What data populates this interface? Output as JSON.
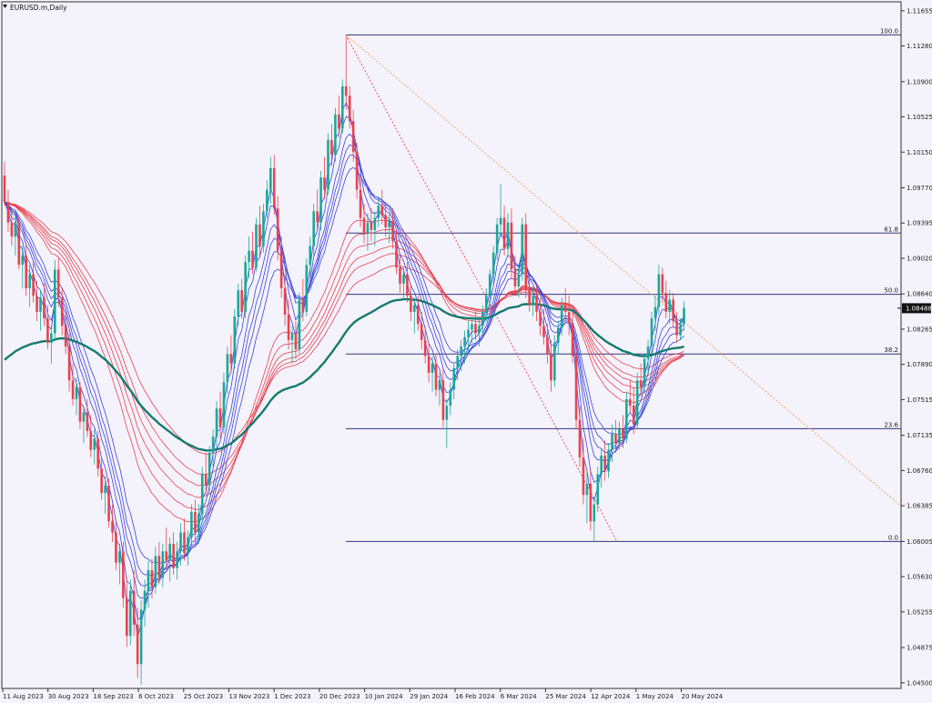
{
  "chart_data": {
    "type": "candlestick",
    "title": "EURUSD.m,Daily",
    "y_ticks": [
      "1.11655",
      "1.11280",
      "1.10900",
      "1.10525",
      "1.10150",
      "1.09770",
      "1.09395",
      "1.09020",
      "1.08640",
      "1.08265",
      "1.07890",
      "1.07515",
      "1.07135",
      "1.06760",
      "1.06385",
      "1.06005",
      "1.05630",
      "1.05255",
      "1.04875",
      "1.04500"
    ],
    "y_tick_values": [
      1.11655,
      1.1128,
      1.109,
      1.10525,
      1.1015,
      1.0977,
      1.09395,
      1.0902,
      1.0864,
      1.08265,
      1.0789,
      1.07515,
      1.07135,
      1.0676,
      1.06385,
      1.06005,
      1.0563,
      1.05255,
      1.04875,
      1.045
    ],
    "ylim": [
      1.0444,
      1.1175
    ],
    "current_price": {
      "label": "1.08488",
      "value": 1.08488
    },
    "x_ticks": [
      "11 Aug 2023",
      "30 Aug 2023",
      "18 Sep 2023",
      "6 Oct 2023",
      "25 Oct 2023",
      "13 Nov 2023",
      "1 Dec 2023",
      "20 Dec 2023",
      "10 Jan 2024",
      "29 Jan 2024",
      "16 Feb 2024",
      "6 Mar 2024",
      "25 Mar 2024",
      "12 Apr 2024",
      "1 May 2024",
      "20 May 2024"
    ],
    "fibonacci": [
      {
        "label": "100.0",
        "value": 1.11398
      },
      {
        "label": "61.8",
        "value": 1.09288
      },
      {
        "label": "50.0",
        "value": 1.08636
      },
      {
        "label": "38.2",
        "value": 1.08001
      },
      {
        "label": "23.6",
        "value": 1.07205
      },
      {
        "label": "0.0",
        "value": 1.06005
      }
    ],
    "series_colors": {
      "bull": "#1aa89a",
      "bear": "#e8434f",
      "fast_ma": "#3b45d8",
      "slow_ma": "#e8434f",
      "long_ma": "#157a6e",
      "fib": "#32367a",
      "trend_orange": "#f0a050",
      "trend_red": "#e8434f"
    },
    "candles": [
      [
        1.099,
        1.1005,
        1.0958,
        1.0962
      ],
      [
        1.0962,
        1.0975,
        1.093,
        1.094
      ],
      [
        1.094,
        1.0952,
        1.0915,
        1.0925
      ],
      [
        1.0925,
        1.095,
        1.0905,
        1.094
      ],
      [
        1.094,
        1.0948,
        1.089,
        1.0895
      ],
      [
        1.0895,
        1.0915,
        1.087,
        1.0905
      ],
      [
        1.0905,
        1.0918,
        1.0862,
        1.087
      ],
      [
        1.087,
        1.0895,
        1.085,
        1.0885
      ],
      [
        1.0885,
        1.09,
        1.0855,
        1.0862
      ],
      [
        1.0862,
        1.0878,
        1.0835,
        1.0845
      ],
      [
        1.0845,
        1.0868,
        1.0825,
        1.086
      ],
      [
        1.086,
        1.0875,
        1.083,
        1.0838
      ],
      [
        1.0838,
        1.0852,
        1.0805,
        1.0812
      ],
      [
        1.0812,
        1.083,
        1.079,
        1.0822
      ],
      [
        1.0822,
        1.09,
        1.0815,
        1.089
      ],
      [
        1.089,
        1.0902,
        1.085,
        1.086
      ],
      [
        1.086,
        1.087,
        1.082,
        1.083
      ],
      [
        1.083,
        1.0845,
        1.08,
        1.0808
      ],
      [
        1.0808,
        1.0822,
        1.076,
        1.0772
      ],
      [
        1.0772,
        1.079,
        1.0745,
        1.0752
      ],
      [
        1.0752,
        1.0775,
        1.0735,
        1.0765
      ],
      [
        1.0765,
        1.077,
        1.072,
        1.0728
      ],
      [
        1.0728,
        1.0745,
        1.0705,
        1.0738
      ],
      [
        1.0738,
        1.0752,
        1.0712,
        1.0718
      ],
      [
        1.0718,
        1.0735,
        1.069,
        1.0698
      ],
      [
        1.0698,
        1.072,
        1.0682,
        1.071
      ],
      [
        1.071,
        1.0718,
        1.067,
        1.0678
      ],
      [
        1.0678,
        1.069,
        1.0645,
        1.0652
      ],
      [
        1.0652,
        1.067,
        1.063,
        1.066
      ],
      [
        1.066,
        1.0668,
        1.0615,
        1.0622
      ],
      [
        1.0622,
        1.064,
        1.06,
        1.061
      ],
      [
        1.061,
        1.0622,
        1.057,
        1.0578
      ],
      [
        1.0578,
        1.0598,
        1.0555,
        1.059
      ],
      [
        1.059,
        1.06,
        1.053,
        1.054
      ],
      [
        1.054,
        1.0562,
        1.0488,
        1.05
      ],
      [
        1.05,
        1.056,
        1.049,
        1.0548
      ],
      [
        1.0548,
        1.057,
        1.05,
        1.0512
      ],
      [
        1.0512,
        1.053,
        1.0455,
        1.047
      ],
      [
        1.047,
        1.0538,
        1.0448,
        1.0528
      ],
      [
        1.0528,
        1.056,
        1.051,
        1.0548
      ],
      [
        1.0548,
        1.058,
        1.053,
        1.057
      ],
      [
        1.057,
        1.0582,
        1.054,
        1.0552
      ],
      [
        1.0552,
        1.0595,
        1.0545,
        1.0585
      ],
      [
        1.0585,
        1.06,
        1.0555,
        1.0562
      ],
      [
        1.0562,
        1.0598,
        1.0552,
        1.059
      ],
      [
        1.059,
        1.0615,
        1.057,
        1.058
      ],
      [
        1.058,
        1.0605,
        1.0558,
        1.0598
      ],
      [
        1.0598,
        1.061,
        1.0565,
        1.0572
      ],
      [
        1.0572,
        1.06,
        1.056,
        1.059
      ],
      [
        1.059,
        1.062,
        1.0575,
        1.061
      ],
      [
        1.061,
        1.0625,
        1.058,
        1.0588
      ],
      [
        1.0588,
        1.0612,
        1.0575,
        1.0605
      ],
      [
        1.0605,
        1.064,
        1.0595,
        1.0632
      ],
      [
        1.0632,
        1.0645,
        1.06,
        1.061
      ],
      [
        1.061,
        1.064,
        1.0598,
        1.063
      ],
      [
        1.063,
        1.068,
        1.062,
        1.0672
      ],
      [
        1.0672,
        1.0695,
        1.065,
        1.066
      ],
      [
        1.066,
        1.0702,
        1.065,
        1.0695
      ],
      [
        1.0695,
        1.072,
        1.068,
        1.0712
      ],
      [
        1.0712,
        1.075,
        1.07,
        1.0742
      ],
      [
        1.0742,
        1.076,
        1.071,
        1.0722
      ],
      [
        1.0722,
        1.078,
        1.0715,
        1.077
      ],
      [
        1.077,
        1.0808,
        1.0758,
        1.08
      ],
      [
        1.08,
        1.082,
        1.078,
        1.079
      ],
      [
        1.079,
        1.0848,
        1.0785,
        1.084
      ],
      [
        1.084,
        1.0875,
        1.083,
        1.0868
      ],
      [
        1.0868,
        1.088,
        1.0838,
        1.0845
      ],
      [
        1.0845,
        1.0905,
        1.0838,
        1.0898
      ],
      [
        1.0898,
        1.0925,
        1.088,
        1.091
      ],
      [
        1.091,
        1.093,
        1.0885,
        1.0892
      ],
      [
        1.0892,
        1.0945,
        1.0888,
        1.0938
      ],
      [
        1.0938,
        1.0958,
        1.0905,
        1.0915
      ],
      [
        1.0915,
        1.096,
        1.0908,
        1.0952
      ],
      [
        1.0952,
        1.0985,
        1.0945,
        1.0975
      ],
      [
        1.0975,
        1.101,
        1.096,
        1.0998
      ],
      [
        1.0998,
        1.1012,
        1.0948,
        1.0955
      ],
      [
        1.0955,
        1.0968,
        1.09,
        1.091
      ],
      [
        1.091,
        1.0925,
        1.086,
        1.087
      ],
      [
        1.087,
        1.0885,
        1.083,
        1.0842
      ],
      [
        1.0842,
        1.0858,
        1.0805,
        1.0815
      ],
      [
        1.0815,
        1.083,
        1.079,
        1.0822
      ],
      [
        1.0822,
        1.0835,
        1.0795,
        1.0805
      ],
      [
        1.0805,
        1.0865,
        1.08,
        1.0858
      ],
      [
        1.0858,
        1.088,
        1.0835,
        1.0845
      ],
      [
        1.0845,
        1.0902,
        1.084,
        1.0895
      ],
      [
        1.0895,
        1.0925,
        1.088,
        1.0915
      ],
      [
        1.0915,
        1.096,
        1.0905,
        1.0952
      ],
      [
        1.0952,
        1.0975,
        1.093,
        1.094
      ],
      [
        1.094,
        1.0995,
        1.0932,
        1.0988
      ],
      [
        1.0988,
        1.101,
        1.0965,
        1.0975
      ],
      [
        1.0975,
        1.1035,
        1.097,
        1.1028
      ],
      [
        1.1028,
        1.1045,
        1.1,
        1.1012
      ],
      [
        1.1012,
        1.1062,
        1.1005,
        1.1055
      ],
      [
        1.1055,
        1.1075,
        1.103,
        1.104
      ],
      [
        1.104,
        1.1092,
        1.1035,
        1.1085
      ],
      [
        1.1085,
        1.1139,
        1.106,
        1.1075
      ],
      [
        1.1075,
        1.1085,
        1.104,
        1.1048
      ],
      [
        1.1048,
        1.106,
        1.1005,
        1.1015
      ],
      [
        1.1015,
        1.1025,
        1.0965,
        1.0975
      ],
      [
        1.0975,
        1.099,
        1.0935,
        1.0945
      ],
      [
        1.0945,
        1.096,
        1.0918,
        1.0928
      ],
      [
        1.0928,
        1.095,
        1.091,
        1.094
      ],
      [
        1.094,
        1.0955,
        1.092,
        1.0932
      ],
      [
        1.0932,
        1.0952,
        1.0915,
        1.0945
      ],
      [
        1.0945,
        1.0968,
        1.0935,
        1.0958
      ],
      [
        1.0958,
        1.0975,
        1.0938,
        1.0948
      ],
      [
        1.0948,
        1.0962,
        1.0925,
        1.0935
      ],
      [
        1.0935,
        1.095,
        1.0918,
        1.0942
      ],
      [
        1.0942,
        1.0955,
        1.0912,
        1.092
      ],
      [
        1.092,
        1.0932,
        1.0885,
        1.0892
      ],
      [
        1.0892,
        1.0905,
        1.0865,
        1.0875
      ],
      [
        1.0875,
        1.0892,
        1.086,
        1.0885
      ],
      [
        1.0885,
        1.0898,
        1.0855,
        1.0862
      ],
      [
        1.0862,
        1.0875,
        1.0835,
        1.0845
      ],
      [
        1.0845,
        1.086,
        1.0822,
        1.0852
      ],
      [
        1.0852,
        1.0862,
        1.0825,
        1.0832
      ],
      [
        1.0832,
        1.0845,
        1.0805,
        1.0815
      ],
      [
        1.0815,
        1.083,
        1.079,
        1.0798
      ],
      [
        1.0798,
        1.0812,
        1.077,
        1.078
      ],
      [
        1.078,
        1.0798,
        1.076,
        1.079
      ],
      [
        1.079,
        1.08,
        1.0755,
        1.0762
      ],
      [
        1.0762,
        1.078,
        1.0745,
        1.0772
      ],
      [
        1.0772,
        1.0785,
        1.0722,
        1.073
      ],
      [
        1.073,
        1.0752,
        1.07,
        1.0745
      ],
      [
        1.0745,
        1.077,
        1.0735,
        1.0762
      ],
      [
        1.0762,
        1.079,
        1.0752,
        1.0785
      ],
      [
        1.0785,
        1.0805,
        1.0772,
        1.0798
      ],
      [
        1.0798,
        1.0815,
        1.0782,
        1.0808
      ],
      [
        1.0808,
        1.0825,
        1.079,
        1.0818
      ],
      [
        1.0818,
        1.0835,
        1.08,
        1.0826
      ],
      [
        1.0826,
        1.084,
        1.0812,
        1.0832
      ],
      [
        1.0832,
        1.0845,
        1.0815,
        1.0822
      ],
      [
        1.0822,
        1.0838,
        1.0808,
        1.083
      ],
      [
        1.083,
        1.0852,
        1.082,
        1.0845
      ],
      [
        1.0845,
        1.087,
        1.0835,
        1.0862
      ],
      [
        1.0862,
        1.089,
        1.085,
        1.0885
      ],
      [
        1.0885,
        1.0915,
        1.0875,
        1.0908
      ],
      [
        1.0908,
        1.0945,
        1.09,
        1.0938
      ],
      [
        1.0938,
        1.0981,
        1.0925,
        1.0945
      ],
      [
        1.0945,
        1.0958,
        1.0905,
        1.0912
      ],
      [
        1.0912,
        1.095,
        1.0905,
        1.094
      ],
      [
        1.094,
        1.0955,
        1.088,
        1.089
      ],
      [
        1.089,
        1.0905,
        1.0865,
        1.0872
      ],
      [
        1.0872,
        1.0895,
        1.086,
        1.0885
      ],
      [
        1.0885,
        1.0945,
        1.0878,
        1.0938
      ],
      [
        1.0938,
        1.095,
        1.086,
        1.0868
      ],
      [
        1.0868,
        1.0885,
        1.0845,
        1.0852
      ],
      [
        1.0852,
        1.0872,
        1.084,
        1.0862
      ],
      [
        1.0862,
        1.0875,
        1.0835,
        1.0845
      ],
      [
        1.0845,
        1.086,
        1.082,
        1.083
      ],
      [
        1.083,
        1.0848,
        1.081,
        1.0818
      ],
      [
        1.0818,
        1.0832,
        1.079,
        1.08
      ],
      [
        1.08,
        1.0815,
        1.076,
        1.0772
      ],
      [
        1.0772,
        1.082,
        1.0765,
        1.0812
      ],
      [
        1.0812,
        1.0835,
        1.08,
        1.0828
      ],
      [
        1.0828,
        1.086,
        1.082,
        1.0852
      ],
      [
        1.0852,
        1.087,
        1.0835,
        1.0845
      ],
      [
        1.0845,
        1.0862,
        1.082,
        1.0832
      ],
      [
        1.0832,
        1.0845,
        1.079,
        1.0798
      ],
      [
        1.0798,
        1.0812,
        1.072,
        1.073
      ],
      [
        1.073,
        1.0745,
        1.068,
        1.069
      ],
      [
        1.069,
        1.071,
        1.064,
        1.065
      ],
      [
        1.065,
        1.0675,
        1.062,
        1.0662
      ],
      [
        1.0662,
        1.0678,
        1.0612,
        1.0622
      ],
      [
        1.0622,
        1.0648,
        1.0601,
        1.064
      ],
      [
        1.064,
        1.068,
        1.0632,
        1.0672
      ],
      [
        1.0672,
        1.07,
        1.0658,
        1.0692
      ],
      [
        1.0692,
        1.0708,
        1.0665,
        1.0675
      ],
      [
        1.0675,
        1.0705,
        1.0668,
        1.0698
      ],
      [
        1.0698,
        1.0725,
        1.0685,
        1.0715
      ],
      [
        1.0715,
        1.073,
        1.0695,
        1.0705
      ],
      [
        1.0705,
        1.0728,
        1.0698,
        1.072
      ],
      [
        1.072,
        1.0735,
        1.07,
        1.071
      ],
      [
        1.071,
        1.076,
        1.0705,
        1.0752
      ],
      [
        1.0752,
        1.0772,
        1.0738,
        1.0745
      ],
      [
        1.0745,
        1.0765,
        1.0715,
        1.0725
      ],
      [
        1.0725,
        1.078,
        1.072,
        1.0772
      ],
      [
        1.0772,
        1.079,
        1.0755,
        1.0765
      ],
      [
        1.0765,
        1.08,
        1.0758,
        1.0795
      ],
      [
        1.0795,
        1.0815,
        1.078,
        1.0808
      ],
      [
        1.0808,
        1.0845,
        1.08,
        1.0838
      ],
      [
        1.0838,
        1.0862,
        1.0825,
        1.085
      ],
      [
        1.085,
        1.0895,
        1.0842,
        1.0885
      ],
      [
        1.0885,
        1.0892,
        1.0855,
        1.0865
      ],
      [
        1.0865,
        1.0878,
        1.0838,
        1.0845
      ],
      [
        1.0845,
        1.0868,
        1.0832,
        1.0858
      ],
      [
        1.0858,
        1.0865,
        1.0828,
        1.0835
      ],
      [
        1.0835,
        1.0845,
        1.0812,
        1.082
      ],
      [
        1.082,
        1.0838,
        1.0815,
        1.0832
      ],
      [
        1.0832,
        1.0856,
        1.0825,
        1.0849
      ]
    ]
  }
}
